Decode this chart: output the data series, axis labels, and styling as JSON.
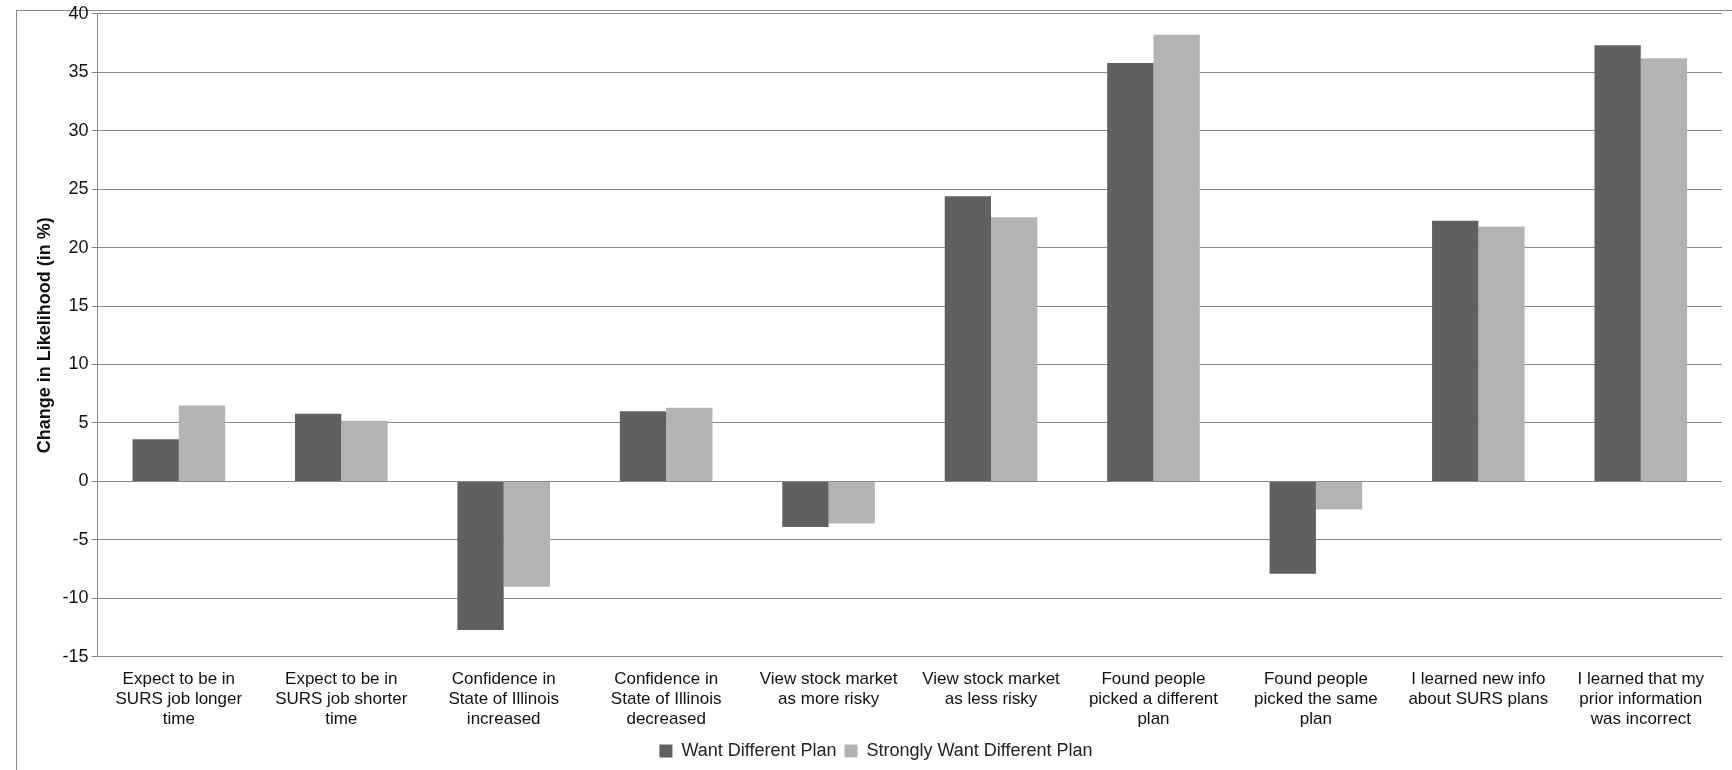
{
  "chart_data": {
    "type": "bar",
    "ylabel": "Change in Likelihood (in %)",
    "categories": [
      "Expect to be in SURS job longer time",
      "Expect to be in SURS job shorter time",
      "Confidence in State of Illinois increased",
      "Confidence in State of Illinois decreased",
      "View stock market as more risky",
      "View stock market as less risky",
      "Found people picked a different plan",
      "Found people picked the same plan",
      "I learned new info about SURS plans",
      "I learned that my prior information was incorrect"
    ],
    "series": [
      {
        "name": "Want Different Plan",
        "color": "#606060",
        "values": [
          3.6,
          5.8,
          -12.7,
          6.0,
          -3.9,
          24.4,
          35.8,
          -7.9,
          22.3,
          37.3
        ]
      },
      {
        "name": "Strongly Want Different Plan",
        "color": "#b3b3b3",
        "values": [
          6.5,
          5.2,
          -9.0,
          6.3,
          -3.6,
          22.6,
          38.2,
          -2.4,
          21.8,
          36.2
        ]
      }
    ],
    "ylim": [
      -15,
      40
    ],
    "yticks": [
      -15,
      -10,
      -5,
      0,
      5,
      10,
      15,
      20,
      25,
      30,
      35,
      40
    ],
    "grid": "y",
    "legend": "bottom"
  }
}
